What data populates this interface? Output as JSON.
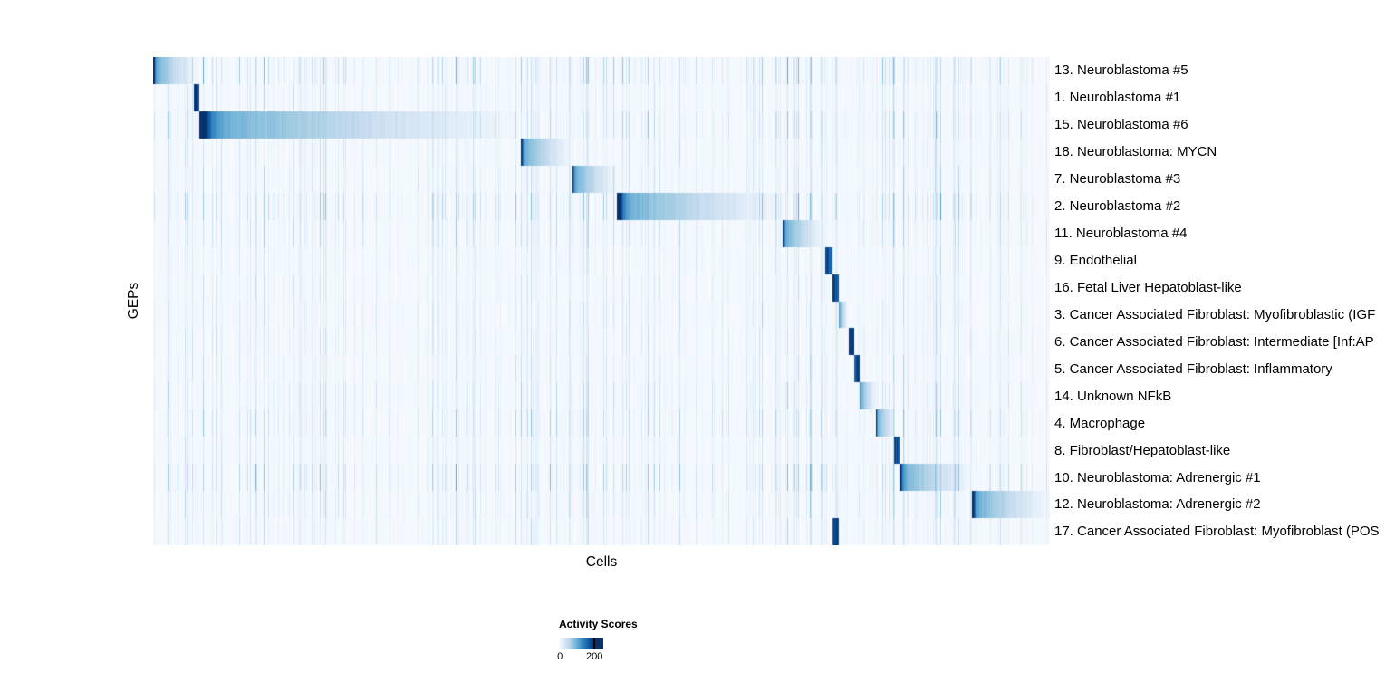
{
  "chart_data": {
    "type": "heatmap",
    "xlabel": "Cells",
    "ylabel": "GEPs",
    "value_range": [
      0,
      200
    ],
    "colormap": [
      "#f7fbff",
      "#deebf7",
      "#c6dbef",
      "#9ecae1",
      "#6baed6",
      "#4292c6",
      "#2171b5",
      "#08519c",
      "#08306b"
    ],
    "description": "Diagonalized heatmap of GEP activity scores per cell; each row shows a dark-to-light block over the cells assigned to that program, with faint blue background noise elsewhere. Blocks are given as fractional [start,end] of the cell axis with a peak activity value.",
    "rows": [
      {
        "label": "13. Neuroblastoma #5",
        "block": [
          0.0,
          0.047
        ],
        "peak": 235,
        "noise": 1.4
      },
      {
        "label": "1. Neuroblastoma #1",
        "block": [
          0.045,
          0.051
        ],
        "peak": 215,
        "noise": 0.8
      },
      {
        "label": "15. Neuroblastoma #6",
        "block": [
          0.051,
          0.41
        ],
        "peak": 240,
        "noise": 1.3
      },
      {
        "label": "18. Neuroblastoma: MYCN",
        "block": [
          0.41,
          0.467
        ],
        "peak": 200,
        "noise": 0.8
      },
      {
        "label": "7. Neuroblastoma #3",
        "block": [
          0.467,
          0.517
        ],
        "peak": 205,
        "noise": 0.9
      },
      {
        "label": "2. Neuroblastoma #2",
        "block": [
          0.517,
          0.702
        ],
        "peak": 240,
        "noise": 1.5
      },
      {
        "label": "11. Neuroblastoma #4",
        "block": [
          0.702,
          0.749
        ],
        "peak": 215,
        "noise": 1.0
      },
      {
        "label": "9. Endothelial",
        "block": [
          0.749,
          0.757
        ],
        "peak": 200,
        "noise": 0.7
      },
      {
        "label": "16. Fetal Liver Hepatoblast-like",
        "block": [
          0.757,
          0.764
        ],
        "peak": 200,
        "noise": 0.7
      },
      {
        "label": "3. Cancer Associated Fibroblast: Myofibroblastic (IGF",
        "block": [
          0.764,
          0.775
        ],
        "peak": 210,
        "noise": 0.8
      },
      {
        "label": "6. Cancer Associated Fibroblast: Intermediate [Inf:AP",
        "block": [
          0.775,
          0.781
        ],
        "peak": 200,
        "noise": 0.8
      },
      {
        "label": "5. Cancer Associated Fibroblast: Inflammatory",
        "block": [
          0.781,
          0.787
        ],
        "peak": 200,
        "noise": 0.8
      },
      {
        "label": "14. Unknown NFkB",
        "block": [
          0.787,
          0.806
        ],
        "peak": 215,
        "noise": 1.0
      },
      {
        "label": "4. Macrophage",
        "block": [
          0.806,
          0.828
        ],
        "peak": 215,
        "noise": 1.2
      },
      {
        "label": "8. Fibroblast/Hepatoblast-like",
        "block": [
          0.826,
          0.832
        ],
        "peak": 200,
        "noise": 0.8
      },
      {
        "label": "10. Neuroblastoma: Adrenergic #1",
        "block": [
          0.832,
          0.913
        ],
        "peak": 240,
        "noise": 1.5
      },
      {
        "label": "12. Neuroblastoma: Adrenergic #2",
        "block": [
          0.913,
          1.0
        ],
        "peak": 240,
        "noise": 1.0
      },
      {
        "label": "17. Cancer Associated Fibroblast: Myofibroblast (POS",
        "block": [
          0.757,
          0.764
        ],
        "peak": 195,
        "noise": 0.8
      }
    ],
    "legend": {
      "title": "Activity Scores",
      "min_label": "0",
      "max_label": "200",
      "tick_pos": 0.8
    }
  }
}
